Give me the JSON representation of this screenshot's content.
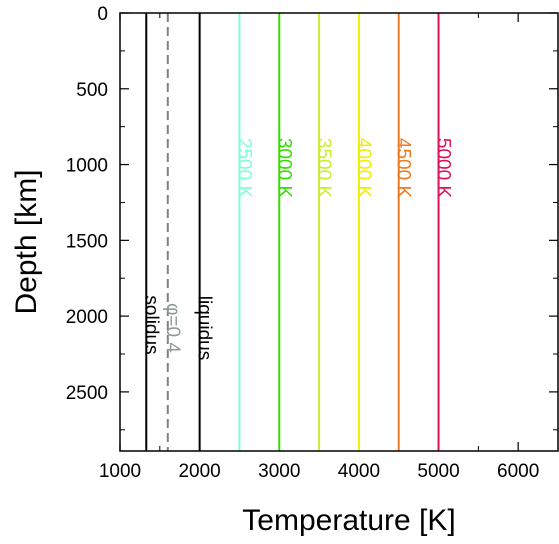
{
  "chart_data": {
    "type": "line",
    "xlabel": "Temperature [K]",
    "ylabel": "Depth [km]",
    "xlim": [
      1000,
      6500
    ],
    "ylim": [
      0,
      2890
    ],
    "y_inverted": true,
    "grid": false,
    "x_ticks": [
      1000,
      2000,
      3000,
      4000,
      5000,
      6000
    ],
    "x_minor_ticks": [
      1500,
      2500,
      3500,
      4500,
      5500
    ],
    "y_ticks": [
      0,
      500,
      1000,
      1500,
      2000,
      2500
    ],
    "y_minor_ticks": [
      250,
      750,
      1250,
      1750,
      2250,
      2750
    ],
    "series": [
      {
        "name": "solidus",
        "x": [
          1330,
          1330
        ],
        "y": [
          0,
          2890
        ],
        "color": "#000000",
        "dash": false
      },
      {
        "name": "φ=0.4",
        "x": [
          1600,
          1600
        ],
        "y": [
          0,
          2890
        ],
        "color": "#808080",
        "dash": true
      },
      {
        "name": "liquidus",
        "x": [
          2000,
          2000
        ],
        "y": [
          0,
          2890
        ],
        "color": "#000000",
        "dash": false
      },
      {
        "name": "2500 K",
        "x": [
          2500,
          2500
        ],
        "y": [
          0,
          2890
        ],
        "color": "#7fffd4",
        "dash": false
      },
      {
        "name": "3000 K",
        "x": [
          3000,
          3000
        ],
        "y": [
          0,
          2890
        ],
        "color": "#33dd00",
        "dash": false
      },
      {
        "name": "3500 K",
        "x": [
          3500,
          3500
        ],
        "y": [
          0,
          2890
        ],
        "color": "#c8ef2a",
        "dash": false
      },
      {
        "name": "4000 K",
        "x": [
          4000,
          4000
        ],
        "y": [
          0,
          2890
        ],
        "color": "#eeee00",
        "dash": false
      },
      {
        "name": "4500 K",
        "x": [
          4500,
          4500
        ],
        "y": [
          0,
          2890
        ],
        "color": "#f07a22",
        "dash": false
      },
      {
        "name": "5000 K",
        "x": [
          5000,
          5000
        ],
        "y": [
          0,
          2890
        ],
        "color": "#e0105a",
        "dash": false
      }
    ]
  }
}
